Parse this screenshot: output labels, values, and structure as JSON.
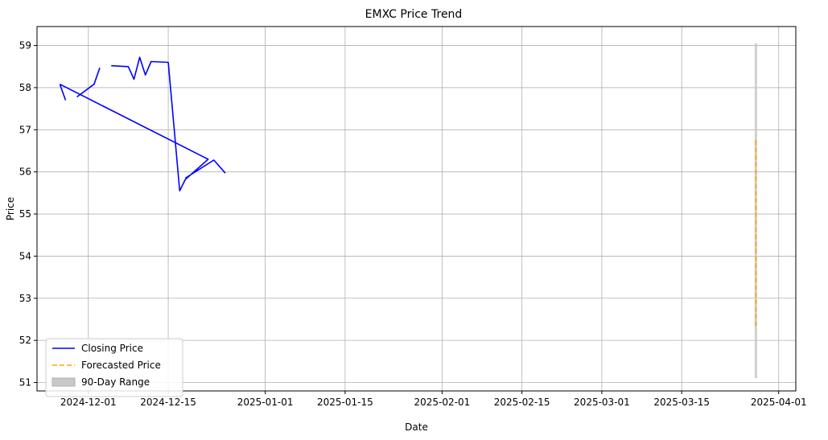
{
  "chart_data": {
    "type": "line",
    "title": "EMXC Price Trend",
    "xlabel": "Date",
    "ylabel": "Price",
    "grid": true,
    "legend_position": "lower-left",
    "xlim": [
      "2024-11-22",
      "2025-04-04"
    ],
    "ylim": [
      50.8,
      59.45
    ],
    "x_ticks": [
      "2024-12-01",
      "2024-12-15",
      "2025-01-01",
      "2025-01-15",
      "2025-02-01",
      "2025-02-15",
      "2025-03-01",
      "2025-03-15",
      "2025-04-01"
    ],
    "y_ticks": [
      51,
      52,
      53,
      54,
      55,
      56,
      57,
      58,
      59
    ],
    "series": [
      {
        "name": "Closing Price",
        "style": "solid",
        "color": "#0000ff",
        "points": [
          {
            "x": "2024-11-26",
            "y": 58.08
          },
          {
            "x": "2024-11-27",
            "y": 57.7
          },
          {
            "x": null,
            "y": null
          },
          {
            "x": "2024-11-29",
            "y": 57.78
          },
          {
            "x": "2024-12-02",
            "y": 58.08
          },
          {
            "x": "2024-12-03",
            "y": 58.47
          },
          {
            "x": null,
            "y": null
          },
          {
            "x": "2024-12-05",
            "y": 58.52
          },
          {
            "x": "2024-12-08",
            "y": 58.5
          },
          {
            "x": "2024-12-09",
            "y": 58.2
          },
          {
            "x": "2024-12-10",
            "y": 58.72
          },
          {
            "x": "2024-12-11",
            "y": 58.3
          },
          {
            "x": "2024-12-12",
            "y": 58.62
          },
          {
            "x": "2024-12-15",
            "y": 58.6
          },
          {
            "x": "2024-12-17",
            "y": 55.55
          },
          {
            "x": "2024-12-18",
            "y": 55.82
          },
          {
            "x": "2024-12-22",
            "y": 56.3
          },
          {
            "x": "2024-11-26",
            "y": 58.08
          },
          {
            "x": null,
            "y": null
          },
          {
            "x": "2024-12-18",
            "y": 55.85
          },
          {
            "x": "2024-12-23",
            "y": 56.28
          },
          {
            "x": "2024-12-25",
            "y": 55.97
          }
        ]
      },
      {
        "name": "Forecasted Price",
        "style": "dashed",
        "color": "#ffa500",
        "x": "2025-03-28",
        "range": [
          52.3,
          56.75
        ]
      }
    ],
    "bands": [
      {
        "name": "90-Day Range",
        "color": "#c8c8c8",
        "x": "2025-03-28",
        "range": [
          51.1,
          59.05
        ]
      }
    ]
  }
}
